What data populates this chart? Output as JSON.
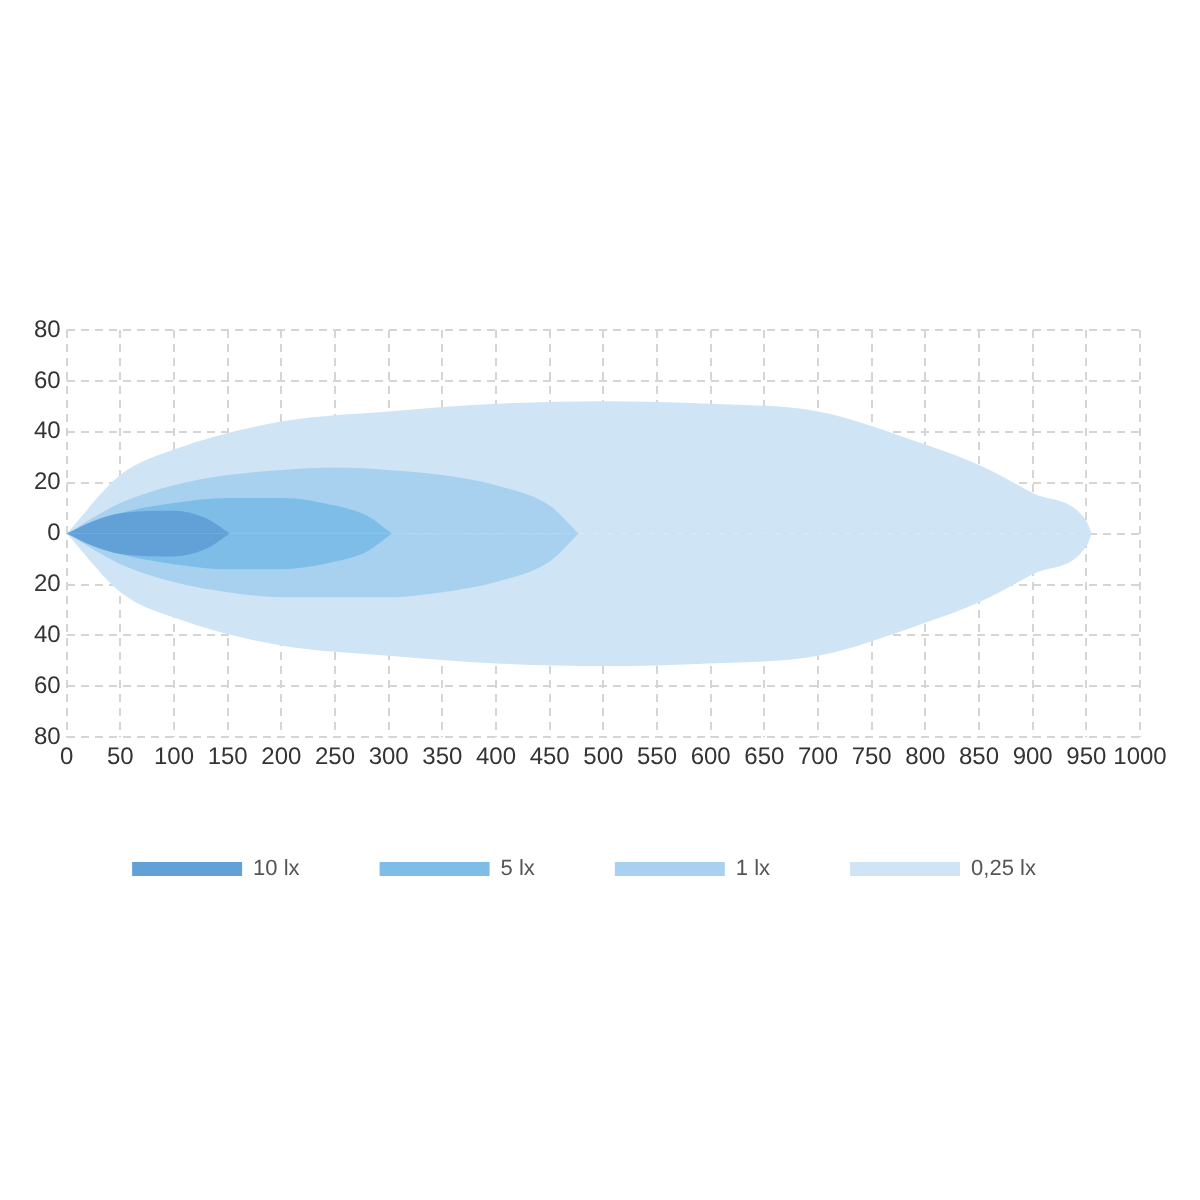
{
  "chart_data": {
    "type": "area",
    "xlim": [
      0,
      1000
    ],
    "xticks": [
      0,
      50,
      100,
      150,
      200,
      250,
      300,
      350,
      400,
      450,
      500,
      550,
      600,
      650,
      700,
      750,
      800,
      850,
      900,
      950,
      1000
    ],
    "ylim": [
      -80,
      80
    ],
    "yticks": [
      {
        "value": -80,
        "label": "80"
      },
      {
        "value": -60,
        "label": "60"
      },
      {
        "value": -40,
        "label": "40"
      },
      {
        "value": -20,
        "label": "20"
      },
      0,
      20,
      40,
      60,
      80
    ],
    "grid": true,
    "legend": "bottom",
    "marker": "none",
    "series": [
      {
        "name": "10 lx",
        "color": "#62a1d8",
        "x": [
          0,
          25,
          50,
          100,
          130,
          152
        ],
        "values": [
          0,
          5,
          8,
          9,
          6,
          0
        ]
      },
      {
        "name": "5 lx",
        "color": "#7fbde9",
        "x": [
          0,
          50,
          100,
          150,
          200,
          250,
          280,
          303
        ],
        "values": [
          0,
          8,
          12,
          14,
          14,
          11,
          7,
          0
        ]
      },
      {
        "name": "1 lx",
        "color": "#a8d1f0",
        "x": [
          0,
          50,
          100,
          150,
          200,
          250,
          300,
          350,
          400,
          450,
          477
        ],
        "values": [
          0,
          12,
          19,
          23,
          25,
          26,
          25,
          23,
          19,
          11,
          0
        ]
      },
      {
        "name": "0,25 lx",
        "color": "#cfe5f6",
        "x": [
          0,
          50,
          100,
          200,
          300,
          400,
          500,
          600,
          700,
          800,
          850,
          900,
          950,
          955
        ],
        "values": [
          0,
          23,
          33,
          44,
          48,
          51,
          52,
          51,
          48,
          35,
          27,
          16,
          5,
          0
        ]
      },
      {
        "color": "#62a1d8",
        "x": [
          0,
          25,
          50,
          100,
          130,
          152
        ],
        "values": [
          0,
          -5,
          -8,
          -9,
          -6,
          0
        ]
      },
      {
        "color": "#7fbde9",
        "x": [
          0,
          50,
          100,
          150,
          200,
          250,
          280,
          303
        ],
        "values": [
          0,
          -8,
          -12,
          -14,
          -14,
          -11,
          -7,
          0
        ]
      },
      {
        "color": "#a8d1f0",
        "x": [
          0,
          50,
          100,
          150,
          200,
          250,
          300,
          350,
          400,
          450,
          477
        ],
        "values": [
          0,
          -12,
          -19,
          -23,
          -25,
          -25,
          -25,
          -23,
          -19,
          -11,
          0
        ]
      },
      {
        "color": "#cfe5f6",
        "x": [
          0,
          50,
          100,
          200,
          300,
          400,
          500,
          600,
          700,
          800,
          850,
          900,
          950,
          955
        ],
        "values": [
          0,
          -23,
          -33,
          -44,
          -48,
          -51,
          -52,
          -51,
          -48,
          -35,
          -27,
          -16,
          -5,
          0
        ]
      }
    ]
  }
}
